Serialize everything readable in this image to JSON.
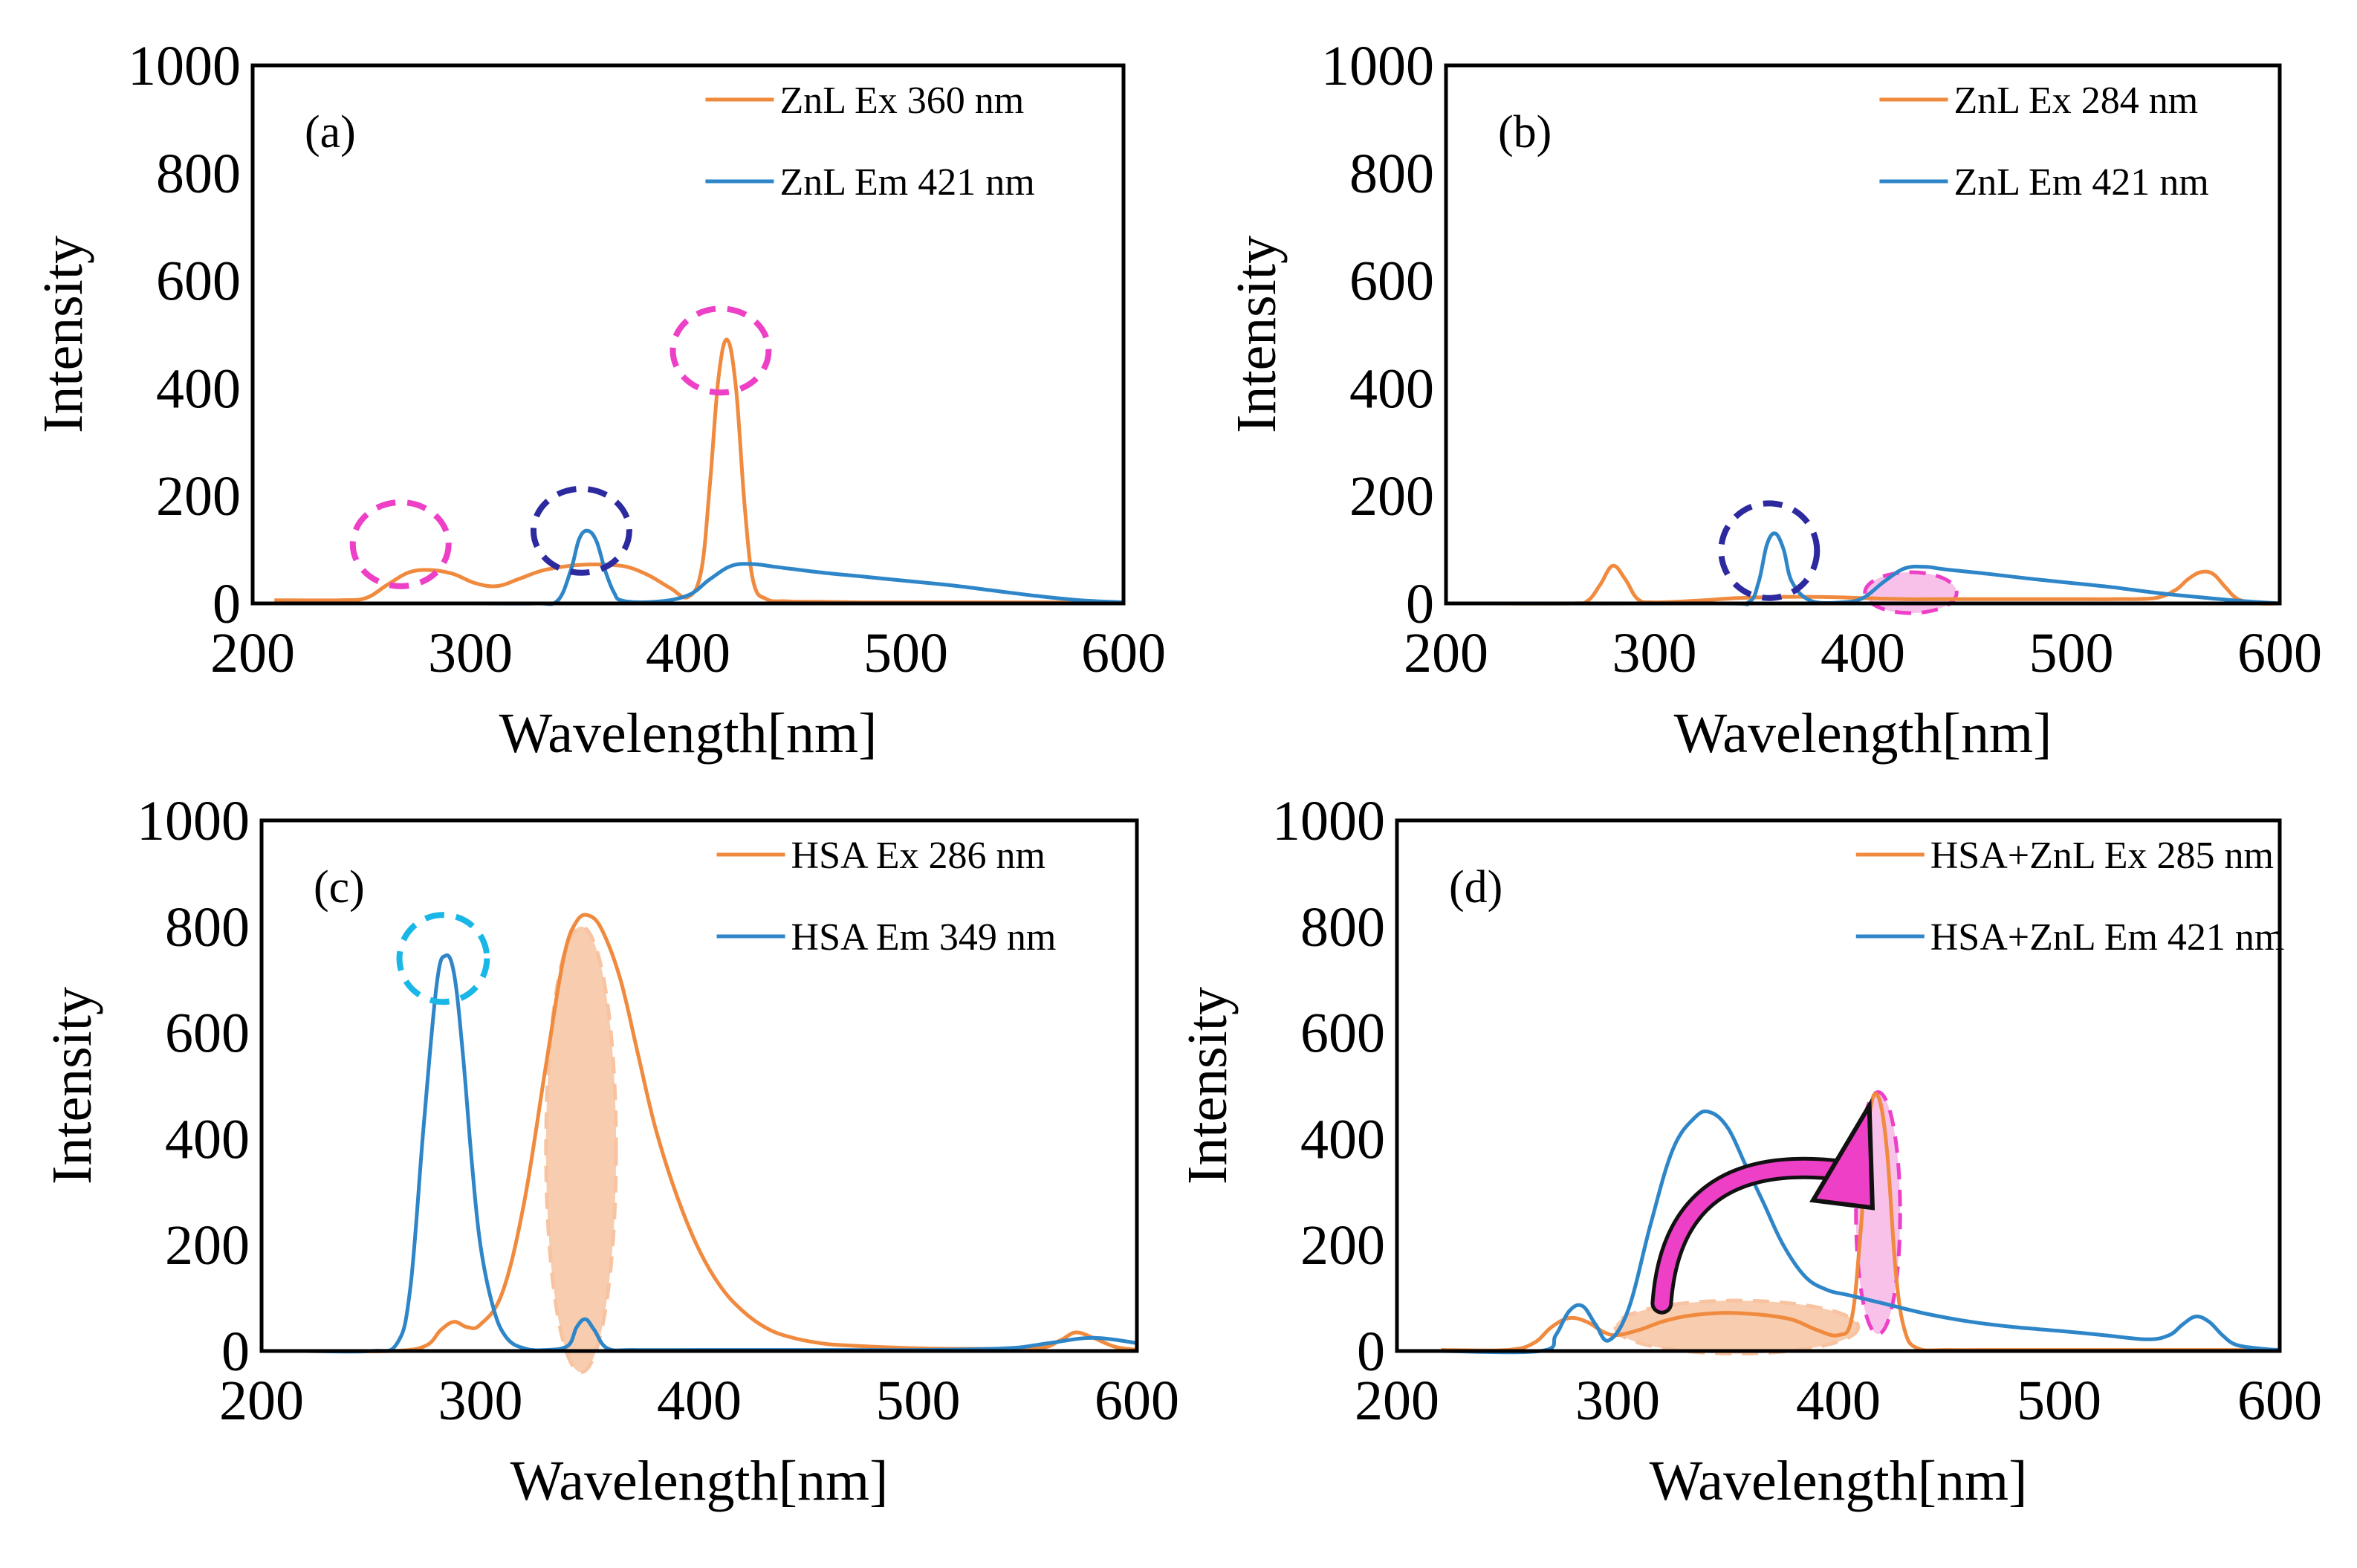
{
  "colors": {
    "ex": "#F08A3E",
    "em": "#2E86C8",
    "magenta": "#EE3FC7",
    "navy": "#2D2A9F",
    "cyan": "#19B7E8",
    "pink_fill": "#F6B6E6",
    "peach_fill": "#F7C3A0"
  },
  "chart_data": [
    {
      "type": "line",
      "panel": "(a)",
      "xlabel": "Wavelength[nm]",
      "ylabel": "Intensity",
      "xlim": [
        200,
        600
      ],
      "ylim": [
        0,
        1000
      ],
      "xticks": [
        "200",
        "300",
        "400",
        "500",
        "600"
      ],
      "yticks": [
        "0",
        "200",
        "400",
        "600",
        "800",
        "1000"
      ],
      "series": [
        {
          "name": "ZnL Ex 360 nm",
          "role": "ex",
          "x": [
            210,
            240,
            252,
            262,
            272,
            282,
            292,
            302,
            312,
            322,
            332,
            342,
            352,
            362,
            372,
            382,
            392,
            400,
            406,
            410,
            414,
            418,
            422,
            426,
            430,
            436,
            445,
            460,
            480,
            510,
            550,
            600
          ],
          "y": [
            6,
            6,
            10,
            35,
            58,
            62,
            55,
            38,
            32,
            45,
            60,
            68,
            72,
            72,
            68,
            52,
            28,
            12,
            60,
            220,
            420,
            490,
            400,
            180,
            40,
            8,
            4,
            3,
            2,
            2,
            2,
            2
          ]
        },
        {
          "name": "ZnL Em 421 nm",
          "role": "em",
          "x": [
            210,
            300,
            330,
            340,
            346,
            350,
            354,
            358,
            362,
            366,
            370,
            385,
            400,
            410,
            420,
            430,
            440,
            460,
            480,
            500,
            520,
            540,
            560,
            580,
            600
          ],
          "y": [
            0,
            0,
            0,
            5,
            60,
            120,
            135,
            115,
            60,
            20,
            5,
            3,
            15,
            45,
            70,
            73,
            68,
            58,
            50,
            42,
            34,
            24,
            14,
            6,
            2
          ]
        }
      ]
    },
    {
      "type": "line",
      "panel": "(b)",
      "xlabel": "Wavelength[nm]",
      "ylabel": "Intensity",
      "xlim": [
        200,
        600
      ],
      "ylim": [
        0,
        1000
      ],
      "xticks": [
        "200",
        "300",
        "400",
        "500",
        "600"
      ],
      "yticks": [
        "0",
        "200",
        "400",
        "600",
        "800",
        "1000"
      ],
      "series": [
        {
          "name": "ZnL Ex 284 nm",
          "role": "ex",
          "x": [
            220,
            260,
            268,
            274,
            280,
            286,
            292,
            300,
            320,
            340,
            360,
            380,
            400,
            420,
            440,
            460,
            480,
            500,
            520,
            540,
            550,
            556,
            562,
            568,
            574,
            580,
            590,
            600
          ],
          "y": [
            0,
            0,
            5,
            35,
            70,
            45,
            8,
            2,
            5,
            10,
            12,
            12,
            10,
            8,
            8,
            8,
            8,
            8,
            8,
            10,
            25,
            45,
            58,
            55,
            30,
            8,
            0,
            0
          ]
        },
        {
          "name": "ZnL Em 421 nm",
          "role": "em",
          "x": [
            220,
            330,
            345,
            350,
            354,
            358,
            362,
            366,
            375,
            390,
            400,
            410,
            420,
            430,
            440,
            460,
            480,
            500,
            520,
            540,
            560,
            580,
            600
          ],
          "y": [
            0,
            0,
            2,
            40,
            110,
            130,
            100,
            40,
            5,
            2,
            10,
            40,
            65,
            68,
            63,
            55,
            46,
            38,
            30,
            20,
            12,
            5,
            0
          ]
        }
      ]
    },
    {
      "type": "line",
      "panel": "(c)",
      "xlabel": "Wavelength[nm]",
      "ylabel": "Intensity",
      "xlim": [
        200,
        600
      ],
      "ylim": [
        0,
        1000
      ],
      "xticks": [
        "200",
        "300",
        "400",
        "500",
        "600"
      ],
      "yticks": [
        "0",
        "200",
        "400",
        "600",
        "800",
        "1000"
      ],
      "series": [
        {
          "name": "HSA Ex 286 nm",
          "role": "ex",
          "x": [
            220,
            260,
            275,
            282,
            288,
            294,
            300,
            310,
            320,
            330,
            338,
            344,
            350,
            356,
            364,
            372,
            380,
            390,
            400,
            410,
            420,
            430,
            440,
            455,
            470,
            500,
            530,
            555,
            565,
            572,
            580,
            590,
            600
          ],
          "y": [
            0,
            0,
            10,
            40,
            55,
            45,
            50,
            110,
            280,
            540,
            740,
            810,
            820,
            790,
            700,
            560,
            420,
            290,
            190,
            120,
            75,
            45,
            28,
            15,
            10,
            5,
            4,
            5,
            20,
            35,
            25,
            8,
            2
          ]
        },
        {
          "name": "HSA Em 349 nm",
          "role": "em",
          "x": [
            220,
            250,
            262,
            268,
            274,
            280,
            284,
            288,
            292,
            296,
            300,
            306,
            312,
            320,
            330,
            340,
            344,
            348,
            352,
            358,
            370,
            400,
            450,
            500,
            540,
            560,
            580,
            600
          ],
          "y": [
            0,
            0,
            15,
            120,
            420,
            690,
            745,
            710,
            560,
            360,
            200,
            80,
            25,
            5,
            2,
            10,
            45,
            60,
            40,
            5,
            2,
            2,
            2,
            2,
            5,
            15,
            25,
            15
          ]
        }
      ]
    },
    {
      "type": "line",
      "panel": "(d)",
      "xlabel": "Wavelength[nm]",
      "ylabel": "Intensity",
      "xlim": [
        200,
        600
      ],
      "ylim": [
        0,
        1000
      ],
      "xticks": [
        "200",
        "300",
        "400",
        "500",
        "600"
      ],
      "yticks": [
        "0",
        "200",
        "400",
        "600",
        "800",
        "1000"
      ],
      "series": [
        {
          "name": "HSA+ZnL Ex 285 nm",
          "role": "ex",
          "x": [
            220,
            250,
            262,
            270,
            278,
            286,
            294,
            300,
            310,
            320,
            330,
            340,
            350,
            360,
            370,
            380,
            390,
            400,
            406,
            410,
            414,
            418,
            422,
            426,
            430,
            436,
            450,
            480,
            600
          ],
          "y": [
            2,
            2,
            15,
            45,
            62,
            55,
            35,
            30,
            40,
            55,
            65,
            70,
            72,
            70,
            66,
            58,
            40,
            30,
            60,
            220,
            440,
            480,
            380,
            150,
            40,
            5,
            2,
            2,
            2
          ]
        },
        {
          "name": "HSA+ZnL Em 421 nm",
          "role": "em",
          "x": [
            220,
            265,
            272,
            278,
            284,
            290,
            296,
            305,
            315,
            325,
            335,
            342,
            350,
            358,
            366,
            375,
            385,
            395,
            405,
            420,
            440,
            460,
            480,
            500,
            520,
            540,
            550,
            556,
            562,
            568,
            574,
            580,
            590,
            600
          ],
          "y": [
            0,
            0,
            30,
            75,
            85,
            50,
            20,
            80,
            240,
            380,
            440,
            450,
            420,
            350,
            280,
            200,
            140,
            115,
            105,
            90,
            70,
            55,
            45,
            38,
            30,
            22,
            30,
            50,
            65,
            55,
            30,
            12,
            5,
            2
          ]
        }
      ]
    }
  ]
}
